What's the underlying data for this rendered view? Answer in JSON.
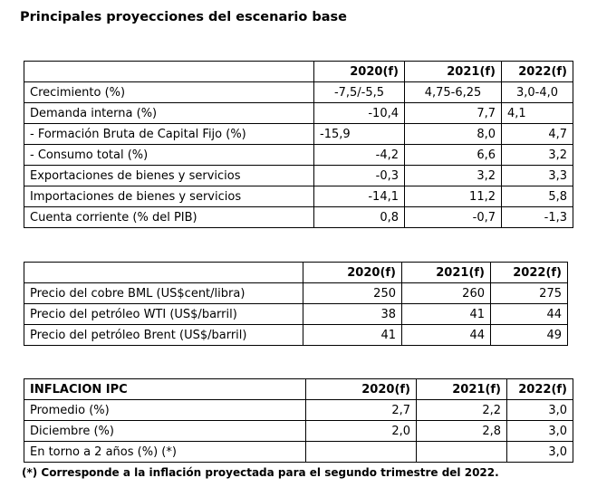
{
  "title": "Principales proyecciones del escenario base",
  "table1": {
    "headers": [
      "",
      "2020(f)",
      "2021(f)",
      "2022(f)"
    ],
    "rows": [
      [
        "Crecimiento (%)",
        "-7,5/-5,5",
        "4,75-6,25",
        "3,0-4,0"
      ],
      [
        "Demanda interna (%)",
        "-10,4",
        "7,7",
        "4,1"
      ],
      [
        "- Formación Bruta de Capital Fijo (%)",
        "-15,9",
        "8,0",
        "4,7"
      ],
      [
        "- Consumo total (%)",
        "-4,2",
        "6,6",
        "3,2"
      ],
      [
        "Exportaciones de bienes y servicios",
        "-0,3",
        "3,2",
        "3,3"
      ],
      [
        "Importaciones de bienes y servicios",
        "-14,1",
        "11,2",
        "5,8"
      ],
      [
        "Cuenta corriente (% del PIB)",
        "0,8",
        "-0,7",
        "-1,3"
      ]
    ]
  },
  "table2": {
    "headers": [
      "",
      "2020(f)",
      "2021(f)",
      "2022(f)"
    ],
    "rows": [
      [
        "Precio del cobre BML (US$cent/libra)",
        "250",
        "260",
        "275"
      ],
      [
        "Precio del petróleo WTI (US$/barril)",
        "38",
        "41",
        "44"
      ],
      [
        "Precio del petróleo Brent (US$/barril)",
        "41",
        "44",
        "49"
      ]
    ]
  },
  "table3": {
    "headers": [
      "INFLACION IPC",
      "2020(f)",
      "2021(f)",
      "2022(f)"
    ],
    "rows": [
      [
        "Promedio (%)",
        "2,7",
        "2,2",
        "3,0"
      ],
      [
        "Diciembre (%)",
        "2,0",
        "2,8",
        "3,0"
      ],
      [
        "En torno a 2 años (%) (*)",
        "",
        "",
        "3,0"
      ]
    ]
  },
  "footnote": "(*) Corresponde a la inflación proyectada para el segundo trimestre del 2022."
}
